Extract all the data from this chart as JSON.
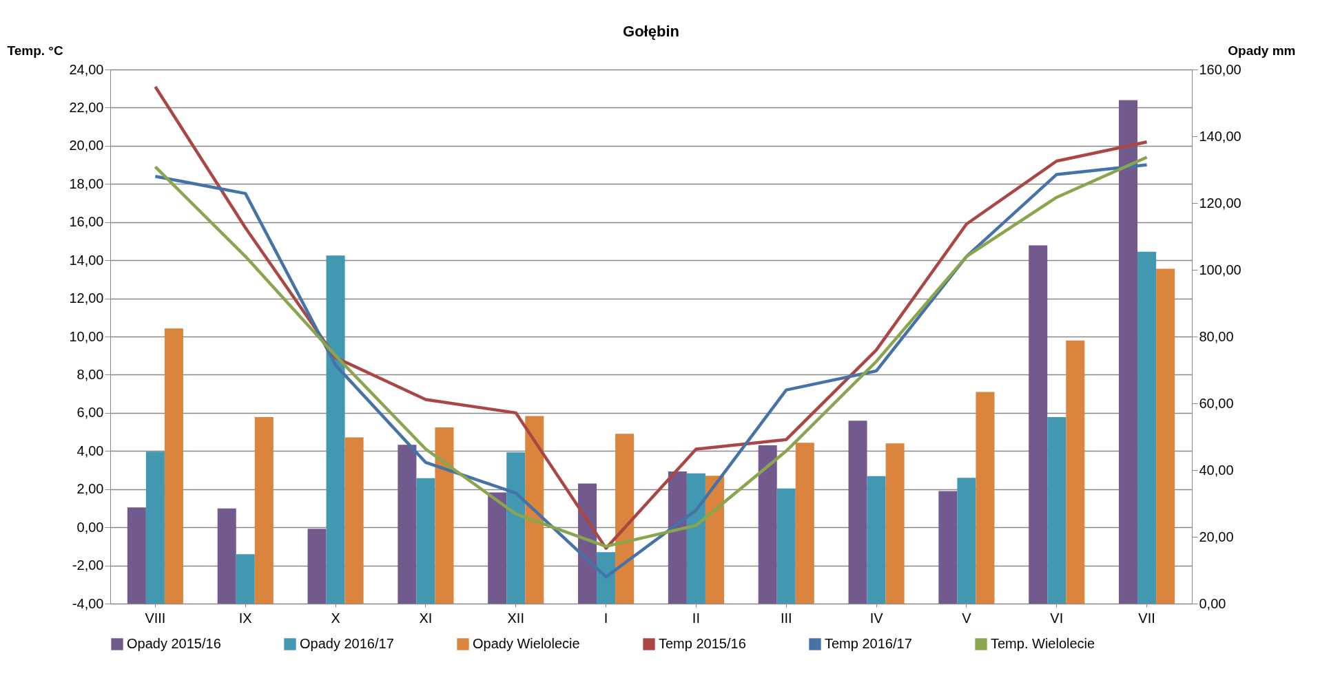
{
  "chart_data": {
    "type": "bar",
    "title": "Gołębin",
    "ylabel": "Temp. °C",
    "y2label": "Opady mm",
    "categories": [
      "VIII",
      "IX",
      "X",
      "XI",
      "XII",
      "I",
      "II",
      "III",
      "IV",
      "V",
      "VI",
      "VII"
    ],
    "series": [
      {
        "name": "Opady 2015/16",
        "axis": "y2",
        "color": "#725a8f",
        "values": [
          28.8,
          28.5,
          22.4,
          47.6,
          33.3,
          36.0,
          39.6,
          47.4,
          54.8,
          33.7,
          107.3,
          150.8
        ]
      },
      {
        "name": "Opady 2016/17",
        "axis": "y2",
        "color": "#4298b0",
        "values": [
          45.5,
          14.8,
          104.3,
          37.6,
          45.3,
          15.4,
          39.0,
          34.5,
          38.2,
          37.7,
          55.9,
          105.4
        ]
      },
      {
        "name": "Opady Wielolecie",
        "axis": "y2",
        "color": "#db843d",
        "values": [
          82.4,
          55.9,
          49.8,
          52.8,
          56.2,
          50.9,
          38.3,
          48.2,
          48.0,
          63.4,
          78.8,
          100.3
        ]
      },
      {
        "name": "Temp 2015/16",
        "type": "line",
        "axis": "y",
        "color": "#aa4643",
        "values": [
          23.1,
          15.7,
          8.9,
          6.7,
          6.0,
          -1.1,
          4.1,
          4.6,
          9.3,
          15.9,
          19.2,
          20.2
        ]
      },
      {
        "name": "Temp 2016/17",
        "type": "line",
        "axis": "y",
        "color": "#4572a7",
        "values": [
          18.4,
          17.5,
          8.5,
          3.4,
          1.8,
          -2.6,
          0.9,
          7.2,
          8.2,
          14.2,
          18.5,
          19.0
        ]
      },
      {
        "name": "Temp. Wielolecie",
        "type": "line",
        "axis": "y",
        "color": "#89a54e",
        "values": [
          18.9,
          14.2,
          9.0,
          4.1,
          0.7,
          -1.0,
          0.1,
          4.0,
          8.7,
          14.2,
          17.3,
          19.4
        ]
      }
    ],
    "ylim": [
      -4,
      24
    ],
    "yticks": [
      {
        "value": -4,
        "label": "-4,00"
      },
      {
        "value": -2,
        "label": "-2,00"
      },
      {
        "value": 0,
        "label": "0,00"
      },
      {
        "value": 2,
        "label": "2,00"
      },
      {
        "value": 4,
        "label": "4,00"
      },
      {
        "value": 6,
        "label": "6,00"
      },
      {
        "value": 8,
        "label": "8,00"
      },
      {
        "value": 10,
        "label": "10,00"
      },
      {
        "value": 12,
        "label": "12,00"
      },
      {
        "value": 14,
        "label": "14,00"
      },
      {
        "value": 16,
        "label": "16,00"
      },
      {
        "value": 18,
        "label": "18,00"
      },
      {
        "value": 20,
        "label": "20,00"
      },
      {
        "value": 22,
        "label": "22,00"
      },
      {
        "value": 24,
        "label": "24,00"
      }
    ],
    "y2lim": [
      0,
      160
    ],
    "y2ticks": [
      {
        "value": 0,
        "label": "0,00"
      },
      {
        "value": 20,
        "label": "20,00"
      },
      {
        "value": 40,
        "label": "40,00"
      },
      {
        "value": 60,
        "label": "60,00"
      },
      {
        "value": 80,
        "label": "80,00"
      },
      {
        "value": 100,
        "label": "100,00"
      },
      {
        "value": 120,
        "label": "120,00"
      },
      {
        "value": 140,
        "label": "140,00"
      },
      {
        "value": 160,
        "label": "160,00"
      }
    ],
    "grid": "y",
    "legend": "bottom",
    "line_style": "solid",
    "marker": "none"
  }
}
